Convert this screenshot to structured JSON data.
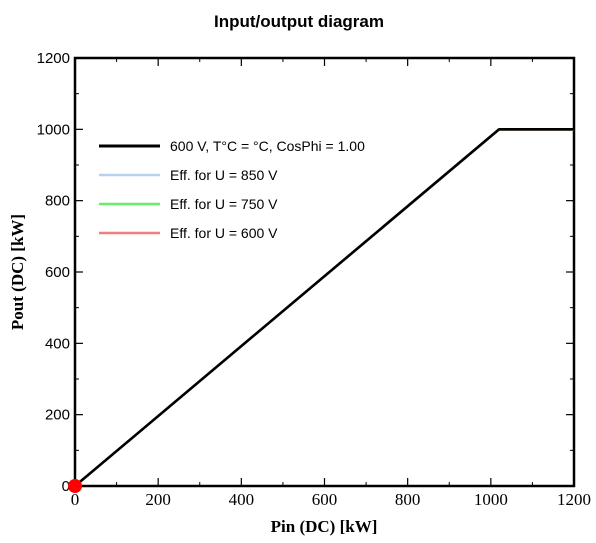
{
  "chart_data": {
    "type": "line",
    "title": "Input/output diagram",
    "xlabel": "Pin (DC) [kW]",
    "ylabel": "Pout (DC) [kW]",
    "xlim": [
      0,
      1200
    ],
    "ylim": [
      0,
      1200
    ],
    "x_ticks": [
      0,
      200,
      400,
      600,
      800,
      1000,
      1200
    ],
    "y_ticks": [
      0,
      200,
      400,
      600,
      800,
      1000,
      1200
    ],
    "grid": false,
    "legend_position": "top-left",
    "series": [
      {
        "name": "Eff. for U = 850 V",
        "color": "#b8cff0",
        "x": [
          0,
          1020,
          1200
        ],
        "y": [
          0,
          998,
          998
        ]
      },
      {
        "name": "Eff. for U = 750 V",
        "color": "#66ee66",
        "x": [
          0,
          1020,
          1200
        ],
        "y": [
          0,
          999,
          999
        ]
      },
      {
        "name": "Eff. for U = 600 V",
        "color": "#f08080",
        "x": [
          0,
          1020,
          1200
        ],
        "y": [
          0,
          999,
          999
        ]
      },
      {
        "name": "600 V, T°C = °C, CosPhi = 1.00",
        "color": "#000000",
        "x": [
          0,
          1020,
          1200
        ],
        "y": [
          0,
          1000,
          1000
        ]
      }
    ],
    "legend_order": [
      3,
      0,
      1,
      2
    ],
    "marker": {
      "x": 0,
      "y": 0,
      "color": "#ff0000"
    }
  }
}
